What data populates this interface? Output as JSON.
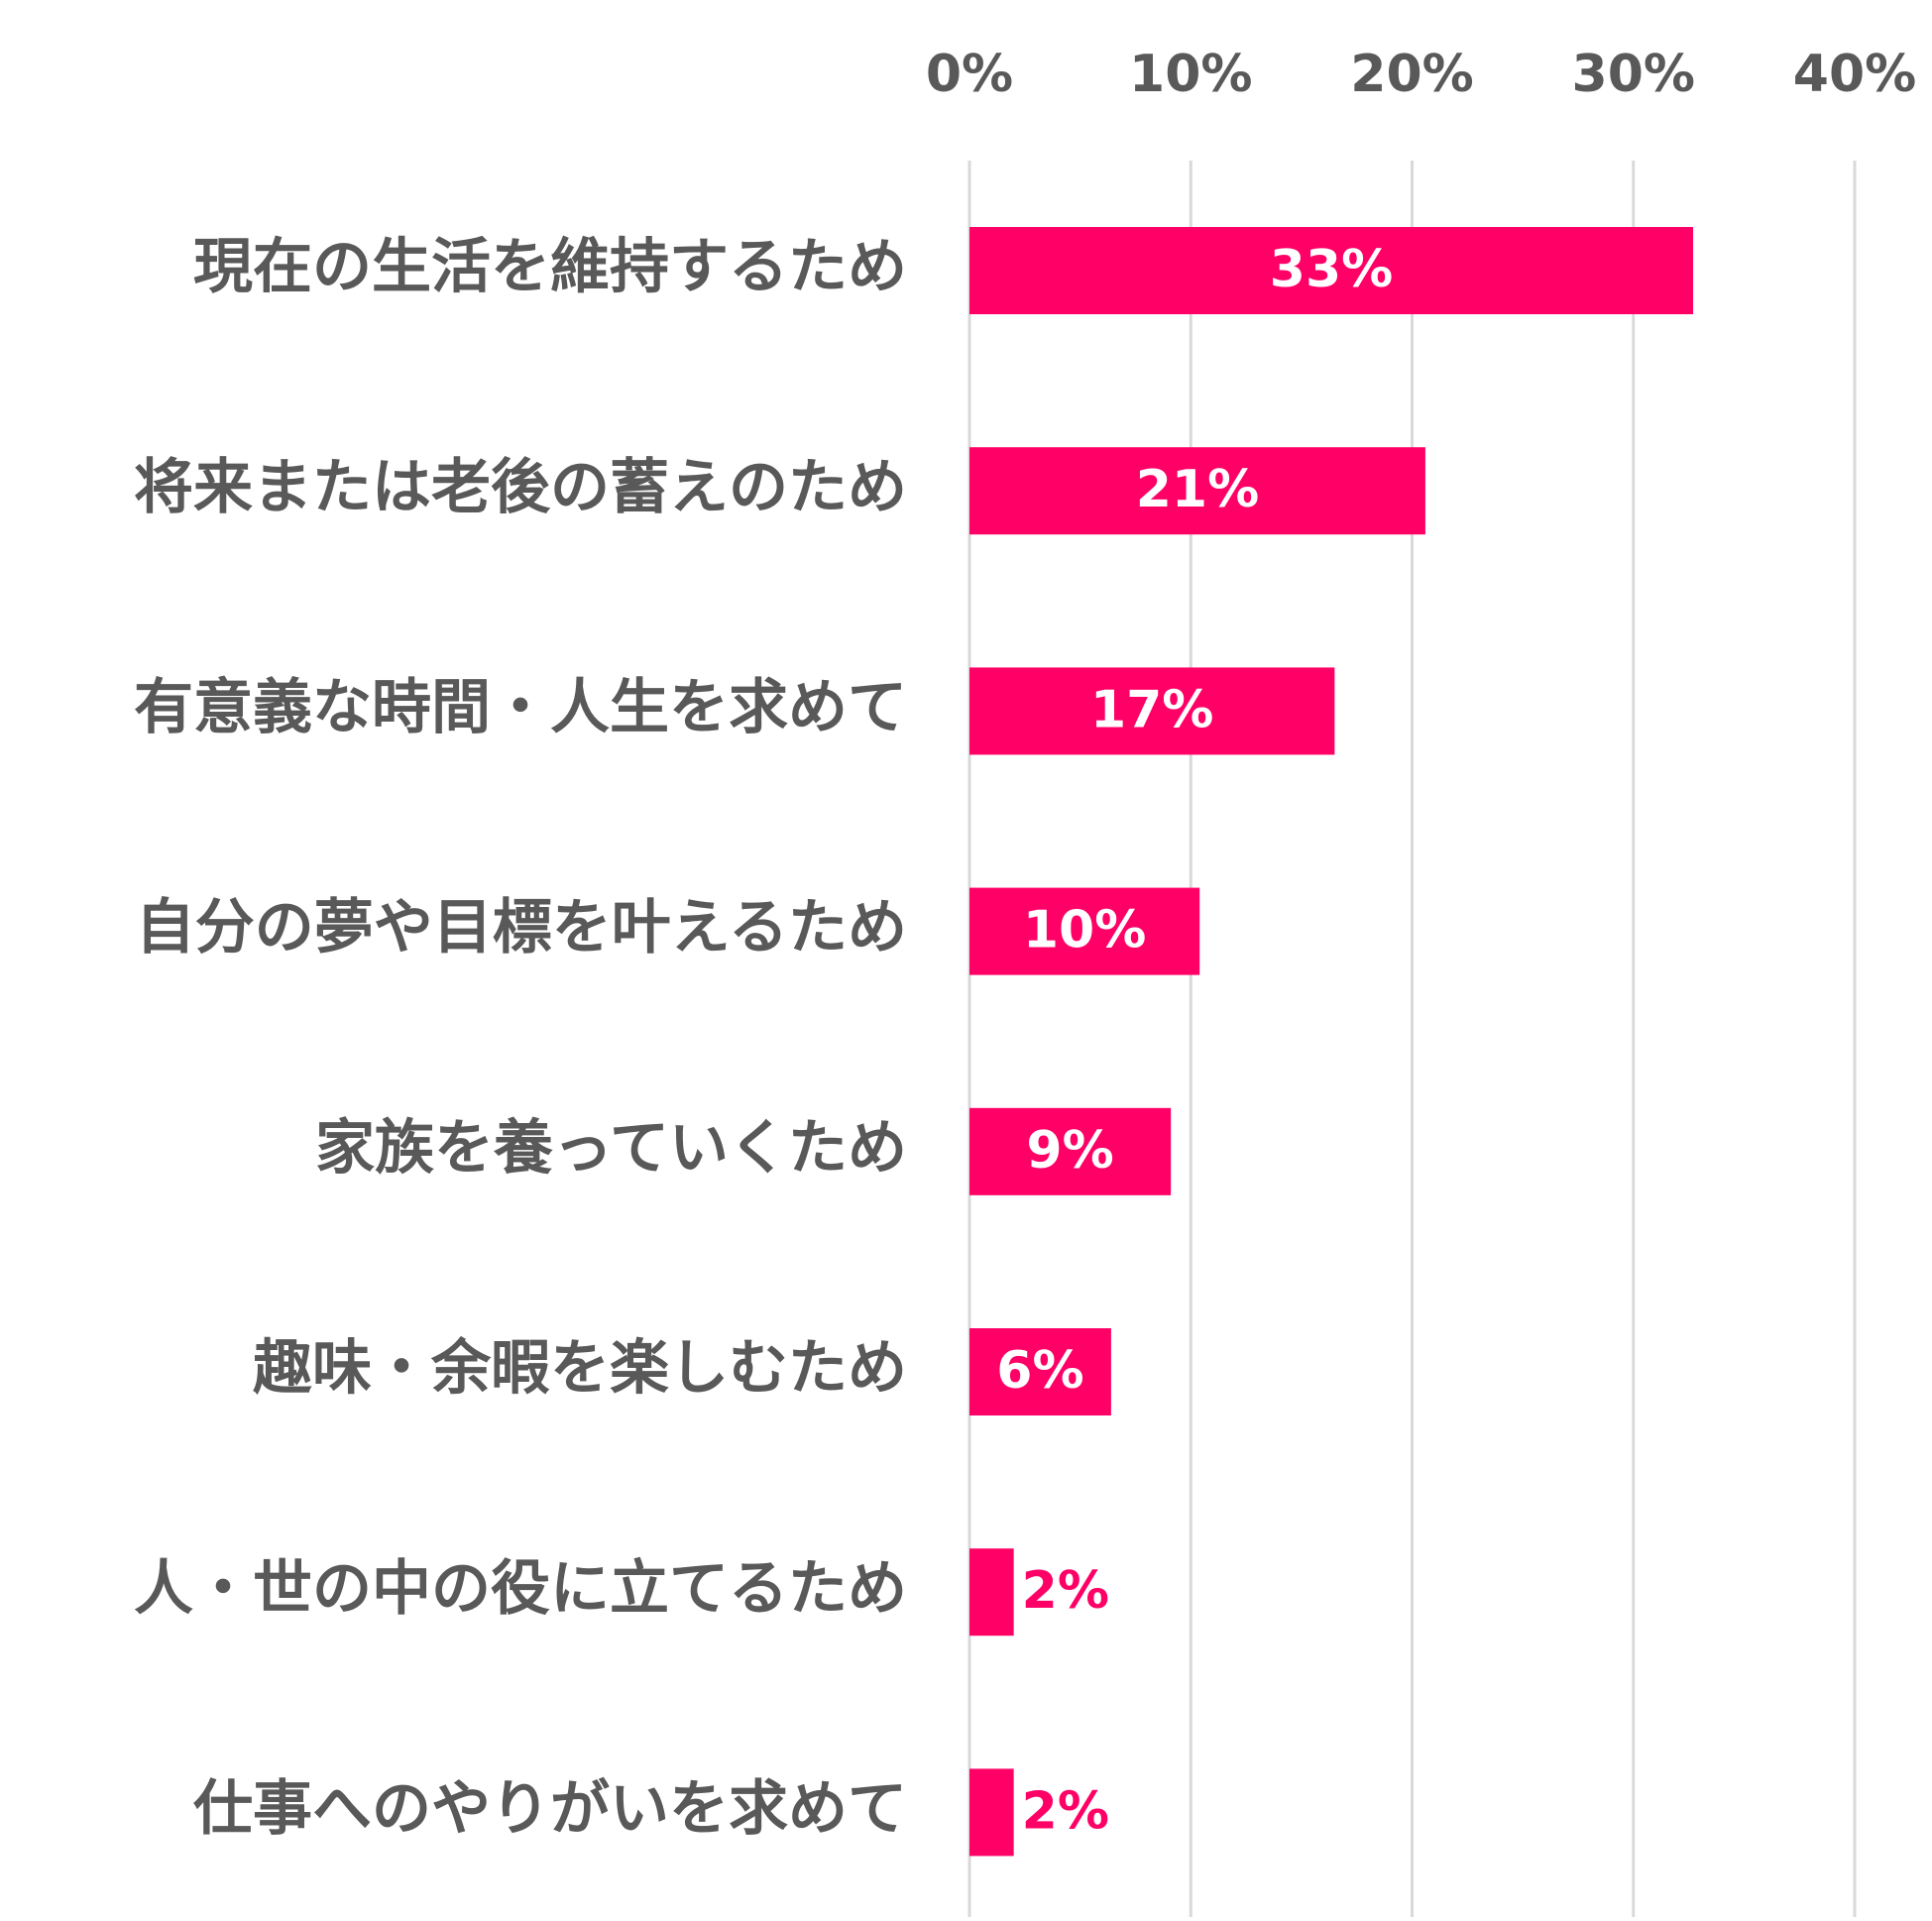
{
  "chart_data": {
    "type": "bar",
    "orientation": "horizontal",
    "title": "",
    "xlabel": "",
    "ylabel": "",
    "xlim": [
      0,
      40
    ],
    "x_ticks": [
      "0%",
      "10%",
      "20%",
      "30%",
      "40%"
    ],
    "x_tick_values": [
      0,
      10,
      20,
      30,
      40
    ],
    "grid": "vertical",
    "legend": "none",
    "categories": [
      "現在の生活を維持するため",
      "将来または老後の蓄えのため",
      "有意義な時間・人生を求めて",
      "自分の夢や目標を叶えるため",
      "家族を養っていくため",
      "趣味・余暇を楽しむため",
      "人・世の中の役に立てるため",
      "仕事へのやりがいを求めて"
    ],
    "values": [
      32.7,
      20.6,
      16.5,
      10.4,
      9.1,
      6.4,
      2.0,
      2.0
    ],
    "data_labels": [
      "33%",
      "21%",
      "17%",
      "10%",
      "9%",
      "6%",
      "2%",
      "2%"
    ],
    "colors": {
      "bar": "#ff0066",
      "label_inside": "#ffffff",
      "label_outside": "#ff0066",
      "text": "#595959",
      "grid": "#d9d9d9"
    }
  }
}
